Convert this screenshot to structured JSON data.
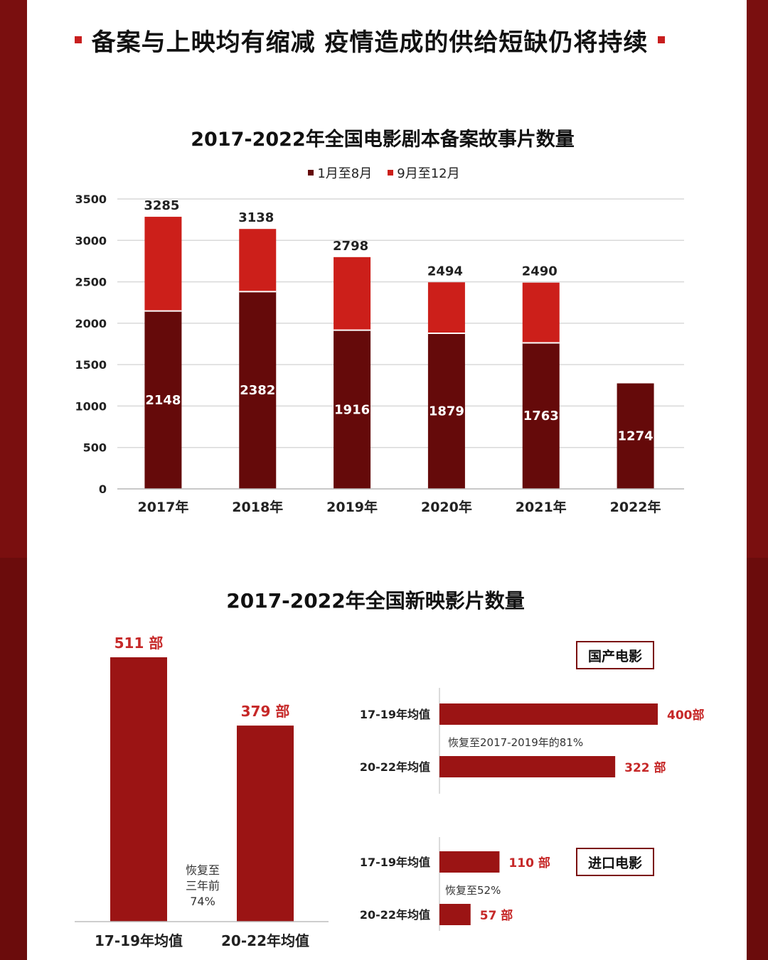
{
  "headline": "备案与上映均有缩减 疫情造成的供给短缺仍将持续",
  "colors": {
    "frame": "#7a0f0f",
    "dark_red": "#650a0a",
    "bright_red": "#cc1f1a",
    "bar_red": "#9b1414",
    "label_red": "#c62828"
  },
  "chart_data": [
    {
      "type": "bar",
      "stacked": true,
      "title": "2017-2022年全国电影剧本备案故事片数量",
      "categories": [
        "2017年",
        "2018年",
        "2019年",
        "2020年",
        "2021年",
        "2022年"
      ],
      "series": [
        {
          "name": "1月至8月",
          "color": "#650a0a",
          "values": [
            2148,
            2382,
            1916,
            1879,
            1763,
            1274
          ]
        },
        {
          "name": "9月至12月",
          "color": "#cc1f1a",
          "values": [
            1137,
            756,
            882,
            615,
            727,
            null
          ]
        }
      ],
      "totals": [
        3285,
        3138,
        2798,
        2494,
        2490,
        null
      ],
      "ylim": [
        0,
        3500
      ],
      "yticks": [
        0,
        500,
        1000,
        1500,
        2000,
        2500,
        3000,
        3500
      ],
      "grid": true,
      "legend": "top-center"
    },
    {
      "type": "bar",
      "title": "2017-2022年全国新映影片数量",
      "categories": [
        "17-19年均值",
        "20-22年均值"
      ],
      "values": [
        511,
        379
      ],
      "value_labels": [
        "511 部",
        "379 部"
      ],
      "annotation": [
        "恢复至",
        "三年前",
        "74%"
      ]
    },
    {
      "type": "bar",
      "orientation": "horizontal",
      "tag": "国产电影",
      "categories": [
        "17-19年均值",
        "20-22年均值"
      ],
      "values": [
        400,
        322
      ],
      "value_labels": [
        "400部",
        "322 部"
      ],
      "annotation": "恢复至2017-2019年的81%"
    },
    {
      "type": "bar",
      "orientation": "horizontal",
      "tag": "进口电影",
      "categories": [
        "17-19年均值",
        "20-22年均值"
      ],
      "values": [
        110,
        57
      ],
      "value_labels": [
        "110 部",
        "57 部"
      ],
      "annotation": "恢复至52%"
    }
  ]
}
